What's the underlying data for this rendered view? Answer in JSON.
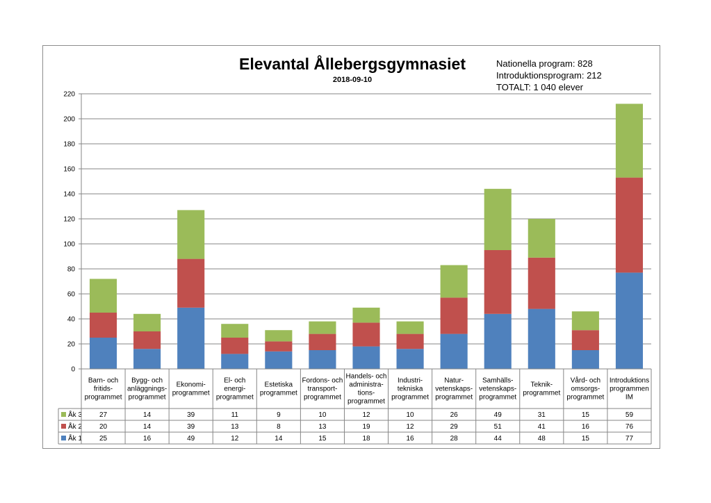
{
  "chart_data": {
    "type": "bar",
    "stacked": true,
    "title": "Elevantal Ållebergsgymnasiet",
    "subtitle": "2018-09-10",
    "info_lines": [
      "Nationella program: 828",
      "Introduktionsprogram: 212",
      "TOTALT: 1 040 elever"
    ],
    "ylim": [
      0,
      220
    ],
    "yticks": [
      0,
      20,
      40,
      60,
      80,
      100,
      120,
      140,
      160,
      180,
      200,
      220
    ],
    "grid": true,
    "legend_placement": "data-table-left",
    "categories": [
      [
        "Barn- och",
        "fritids-",
        "programmet"
      ],
      [
        "Bygg- och",
        "anläggnings-",
        "programmet"
      ],
      [
        "Ekonomi-",
        "programmet"
      ],
      [
        "El- och",
        "energi-",
        "programmet"
      ],
      [
        "Estetiska",
        "programmet"
      ],
      [
        "Fordons- och",
        "transport-",
        "programmet"
      ],
      [
        "Handels- och",
        "administra-",
        "tions-",
        "programmet"
      ],
      [
        "Industri-",
        "tekniska",
        "programmet"
      ],
      [
        "Natur-",
        "vetenskaps-",
        "programmet"
      ],
      [
        "Samhälls-",
        "vetenskaps-",
        "programmet"
      ],
      [
        "Teknik-",
        "programmet"
      ],
      [
        "Vård- och",
        "omsorgs-",
        "programmet"
      ],
      [
        "Introduktions",
        "programmen",
        "IM"
      ]
    ],
    "series": [
      {
        "name": "Åk 1",
        "color": "#4f81bd",
        "values": [
          25,
          16,
          49,
          12,
          14,
          15,
          18,
          16,
          28,
          44,
          48,
          15,
          77
        ]
      },
      {
        "name": "Åk 2",
        "color": "#c0504d",
        "values": [
          20,
          14,
          39,
          13,
          8,
          13,
          19,
          12,
          29,
          51,
          41,
          16,
          76
        ]
      },
      {
        "name": "Åk 3",
        "color": "#9bbb59",
        "values": [
          27,
          14,
          39,
          11,
          9,
          10,
          12,
          10,
          26,
          49,
          31,
          15,
          59
        ]
      }
    ]
  }
}
